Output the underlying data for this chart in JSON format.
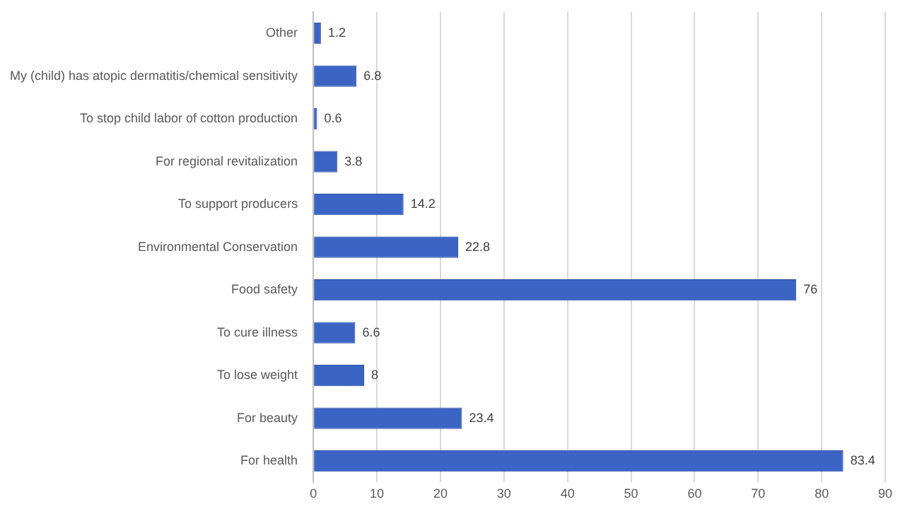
{
  "chart_data": {
    "type": "bar",
    "orientation": "horizontal",
    "categories": [
      "Other",
      "My (child) has atopic dermatitis/chemical sensitivity",
      "To stop child labor of cotton production",
      "For regional revitalization",
      "To support producers",
      "Environmental Conservation",
      "Food safety",
      "To cure illness",
      "To lose weight",
      "For beauty",
      "For health"
    ],
    "values": [
      1.2,
      6.8,
      0.6,
      3.8,
      14.2,
      22.8,
      76,
      6.6,
      8,
      23.4,
      83.4
    ],
    "color": "#3b64c4",
    "xlim": [
      0,
      90
    ],
    "xticks": [
      0,
      10,
      20,
      30,
      40,
      50,
      60,
      70,
      80,
      90
    ],
    "grid": "x",
    "data_labels": true
  }
}
